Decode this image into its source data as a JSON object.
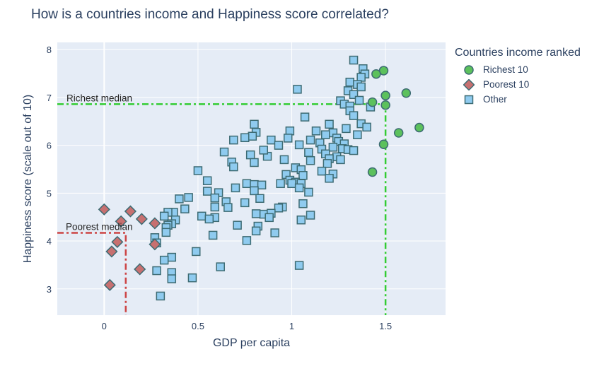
{
  "chart_data": {
    "type": "scatter",
    "title": "How is a countries income and Happiness score correlated?",
    "xlabel": "GDP per capita",
    "ylabel": "Happiness score (scale out of 10)",
    "xlim": [
      -0.25,
      1.82
    ],
    "ylim": [
      2.45,
      8.15
    ],
    "xticks": [
      0,
      0.5,
      1,
      1.5
    ],
    "xtick_labels": [
      "0",
      "0.5",
      "1",
      "1.5"
    ],
    "yticks": [
      3,
      4,
      5,
      6,
      7,
      8
    ],
    "ytick_labels": [
      "3",
      "4",
      "5",
      "6",
      "7",
      "8"
    ],
    "grid": true,
    "legend_title": "Countries income ranked",
    "legend_position": "right",
    "colors": {
      "richest": "#5cc15c",
      "poorest": "#c77070",
      "other": "#8fcbef",
      "marker_edge": "#3d6b73",
      "richest_line": "#33cc33",
      "poorest_line": "#cc4444",
      "plot_bg": "#e5ecf6",
      "grid": "#ffffff"
    },
    "series": [
      {
        "name": "Richest 10",
        "marker": "circle",
        "points": [
          [
            1.49,
            7.56
          ],
          [
            1.45,
            7.49
          ],
          [
            1.5,
            7.04
          ],
          [
            1.61,
            7.09
          ],
          [
            1.43,
            6.9
          ],
          [
            1.5,
            6.84
          ],
          [
            1.68,
            6.37
          ],
          [
            1.57,
            6.26
          ],
          [
            1.49,
            6.02
          ],
          [
            1.43,
            5.44
          ]
        ]
      },
      {
        "name": "Poorest 10",
        "marker": "diamond",
        "points": [
          [
            0.0,
            4.66
          ],
          [
            0.14,
            4.62
          ],
          [
            0.2,
            4.46
          ],
          [
            0.09,
            4.41
          ],
          [
            0.27,
            4.37
          ],
          [
            0.07,
            3.98
          ],
          [
            0.27,
            3.93
          ],
          [
            0.04,
            3.78
          ],
          [
            0.19,
            3.41
          ],
          [
            0.03,
            3.08
          ]
        ]
      },
      {
        "name": "Other",
        "marker": "square",
        "points": [
          [
            1.33,
            7.78
          ],
          [
            1.38,
            7.6
          ],
          [
            1.39,
            7.49
          ],
          [
            1.37,
            7.42
          ],
          [
            1.31,
            7.32
          ],
          [
            1.35,
            7.27
          ],
          [
            1.37,
            7.22
          ],
          [
            1.03,
            7.17
          ],
          [
            1.3,
            7.14
          ],
          [
            1.33,
            7.06
          ],
          [
            1.36,
            6.94
          ],
          [
            1.26,
            6.93
          ],
          [
            1.28,
            6.86
          ],
          [
            1.31,
            6.82
          ],
          [
            1.42,
            6.8
          ],
          [
            1.31,
            6.72
          ],
          [
            1.33,
            6.62
          ],
          [
            1.07,
            6.59
          ],
          [
            1.37,
            6.45
          ],
          [
            1.2,
            6.44
          ],
          [
            1.4,
            6.38
          ],
          [
            1.29,
            6.35
          ],
          [
            0.8,
            6.44
          ],
          [
            1.13,
            6.3
          ],
          [
            0.99,
            6.3
          ],
          [
            0.81,
            6.27
          ],
          [
            1.22,
            6.26
          ],
          [
            1.18,
            6.22
          ],
          [
            1.35,
            6.22
          ],
          [
            0.79,
            6.19
          ],
          [
            0.75,
            6.16
          ],
          [
            1.24,
            6.15
          ],
          [
            0.69,
            6.11
          ],
          [
            1.1,
            6.11
          ],
          [
            1.25,
            6.08
          ],
          [
            0.89,
            6.11
          ],
          [
            0.98,
            6.15
          ],
          [
            1.15,
            6.05
          ],
          [
            1.28,
            6.03
          ],
          [
            0.93,
            6.0
          ],
          [
            1.04,
            6.01
          ],
          [
            1.22,
            5.96
          ],
          [
            1.27,
            5.93
          ],
          [
            1.3,
            5.91
          ],
          [
            1.33,
            5.89
          ],
          [
            1.16,
            5.92
          ],
          [
            0.64,
            5.86
          ],
          [
            1.09,
            5.85
          ],
          [
            1.18,
            5.82
          ],
          [
            0.78,
            5.8
          ],
          [
            0.87,
            5.77
          ],
          [
            0.85,
            5.9
          ],
          [
            1.24,
            5.76
          ],
          [
            1.2,
            5.72
          ],
          [
            1.26,
            5.7
          ],
          [
            0.68,
            5.65
          ],
          [
            0.8,
            5.64
          ],
          [
            0.96,
            5.7
          ],
          [
            1.1,
            5.68
          ],
          [
            1.19,
            5.62
          ],
          [
            0.69,
            5.55
          ],
          [
            1.02,
            5.53
          ],
          [
            1.05,
            5.49
          ],
          [
            1.16,
            5.46
          ],
          [
            1.22,
            5.4
          ],
          [
            0.5,
            5.47
          ],
          [
            1.2,
            5.31
          ],
          [
            0.55,
            5.26
          ],
          [
            0.97,
            5.39
          ],
          [
            1.06,
            5.37
          ],
          [
            0.99,
            5.27
          ],
          [
            1.02,
            5.23
          ],
          [
            1.0,
            5.2
          ],
          [
            1.05,
            5.2
          ],
          [
            0.94,
            5.2
          ],
          [
            0.76,
            5.2
          ],
          [
            0.8,
            5.18
          ],
          [
            0.84,
            5.17
          ],
          [
            0.7,
            5.11
          ],
          [
            1.04,
            5.11
          ],
          [
            0.55,
            5.04
          ],
          [
            0.61,
            5.01
          ],
          [
            1.09,
            5.02
          ],
          [
            0.8,
            5.05
          ],
          [
            0.59,
            4.9
          ],
          [
            0.45,
            4.91
          ],
          [
            0.4,
            4.88
          ],
          [
            0.83,
            4.89
          ],
          [
            0.65,
            4.82
          ],
          [
            0.75,
            4.8
          ],
          [
            1.06,
            4.78
          ],
          [
            0.59,
            4.71
          ],
          [
            0.66,
            4.7
          ],
          [
            0.43,
            4.67
          ],
          [
            0.95,
            4.71
          ],
          [
            0.93,
            4.69
          ],
          [
            0.37,
            4.6
          ],
          [
            0.34,
            4.6
          ],
          [
            0.85,
            4.56
          ],
          [
            0.81,
            4.57
          ],
          [
            0.89,
            4.58
          ],
          [
            1.1,
            4.54
          ],
          [
            0.52,
            4.52
          ],
          [
            0.59,
            4.49
          ],
          [
            0.56,
            4.46
          ],
          [
            0.32,
            4.52
          ],
          [
            0.38,
            4.44
          ],
          [
            0.88,
            4.49
          ],
          [
            1.05,
            4.44
          ],
          [
            0.36,
            4.36
          ],
          [
            0.34,
            4.33
          ],
          [
            0.71,
            4.33
          ],
          [
            0.82,
            4.31
          ],
          [
            0.33,
            4.28
          ],
          [
            0.81,
            4.21
          ],
          [
            0.91,
            4.17
          ],
          [
            0.33,
            4.18
          ],
          [
            0.58,
            4.12
          ],
          [
            0.27,
            4.07
          ],
          [
            0.76,
            4.01
          ],
          [
            0.28,
            3.96
          ],
          [
            0.49,
            3.78
          ],
          [
            0.36,
            3.66
          ],
          [
            0.32,
            3.6
          ],
          [
            1.04,
            3.49
          ],
          [
            0.62,
            3.46
          ],
          [
            0.28,
            3.38
          ],
          [
            0.36,
            3.34
          ],
          [
            0.36,
            3.21
          ],
          [
            0.47,
            3.23
          ],
          [
            0.3,
            2.85
          ]
        ]
      }
    ],
    "reference_lines": [
      {
        "label": "Richest median",
        "x": 1.5,
        "y": 6.86,
        "series": "Richest 10"
      },
      {
        "label": "Poorest median",
        "x": 0.115,
        "y": 4.17,
        "series": "Poorest 10"
      }
    ]
  }
}
